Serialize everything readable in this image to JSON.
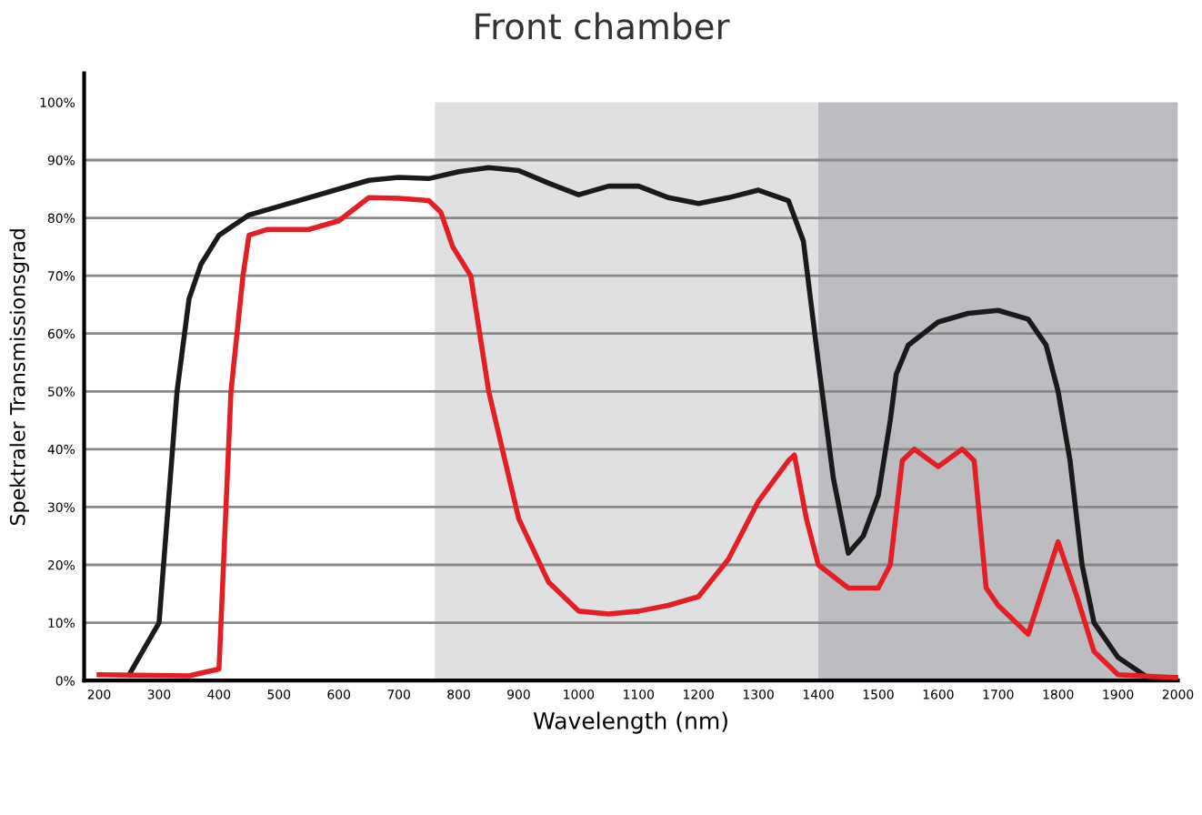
{
  "chart_data": {
    "type": "line",
    "title": "Front chamber",
    "xlabel": "Wavelength (nm)",
    "ylabel": "Spektraler Transmissionsgrad",
    "x": [
      250,
      300,
      330,
      350,
      370,
      400,
      450,
      500,
      600,
      650,
      700,
      750,
      800,
      850,
      900,
      950,
      1000,
      1050,
      1100,
      1150,
      1200,
      1250,
      1300,
      1350,
      1375,
      1400,
      1425,
      1450,
      1475,
      1500,
      1520,
      1530,
      1550,
      1600,
      1650,
      1700,
      1750,
      1780,
      1800,
      1820,
      1840,
      1860,
      1900,
      1950,
      2000
    ],
    "series": [
      {
        "color": "#1a1a1a",
        "values": [
          1,
          10,
          50,
          66,
          72,
          77,
          80.5,
          82,
          85,
          86.5,
          87,
          86.8,
          88,
          88.7,
          88.2,
          86,
          84,
          85.5,
          85.5,
          83.5,
          82.5,
          83.5,
          84.8,
          83,
          76,
          55,
          35,
          22,
          25,
          32,
          45,
          53,
          58,
          62,
          63.5,
          64,
          62.5,
          58,
          50,
          38,
          20,
          10,
          4,
          0.5,
          0.5
        ]
      },
      {
        "color": "#e31e24",
        "x": [
          200,
          350,
          400,
          420,
          440,
          450,
          480,
          550,
          600,
          650,
          700,
          750,
          770,
          790,
          820,
          850,
          900,
          950,
          1000,
          1050,
          1100,
          1150,
          1200,
          1250,
          1300,
          1350,
          1360,
          1380,
          1400,
          1450,
          1500,
          1520,
          1540,
          1560,
          1600,
          1640,
          1660,
          1680,
          1700,
          1750,
          1800,
          1830,
          1860,
          1900,
          2000
        ],
        "values": [
          1,
          0.8,
          2,
          50,
          70,
          77,
          78,
          78,
          79.5,
          83.5,
          83.4,
          83,
          81,
          75,
          70,
          50,
          28,
          17,
          12,
          11.5,
          12,
          13,
          14.5,
          21,
          31,
          38,
          39,
          28,
          20,
          16,
          16,
          20,
          38,
          40,
          37,
          40,
          38,
          16,
          13,
          8,
          24,
          15,
          5,
          1,
          0.5
        ]
      }
    ],
    "xlim": [
      175,
      2000
    ],
    "xticks": [
      200,
      300,
      400,
      500,
      600,
      700,
      800,
      900,
      1000,
      1100,
      1200,
      1300,
      1400,
      1500,
      1600,
      1700,
      1800,
      1900,
      2000
    ],
    "ylim": [
      0,
      105
    ],
    "yticks": [
      {
        "value": 0,
        "label": "0%"
      },
      {
        "value": 10,
        "label": "10%"
      },
      {
        "value": 20,
        "label": "20%"
      },
      {
        "value": 30,
        "label": "30%"
      },
      {
        "value": 40,
        "label": "40%"
      },
      {
        "value": 50,
        "label": "50%"
      },
      {
        "value": 60,
        "label": "60%"
      },
      {
        "value": 70,
        "label": "70%"
      },
      {
        "value": 80,
        "label": "80%"
      },
      {
        "value": 90,
        "label": "90%"
      },
      {
        "value": 100,
        "label": "100%"
      }
    ],
    "grid": "y",
    "line_style": "solid",
    "marker": "none",
    "bands": [
      {
        "axis": "x",
        "from": 760,
        "to": 1400,
        "color": "#dfe0e2"
      },
      {
        "axis": "x",
        "from": 1400,
        "to": 2000,
        "color": "#bcbdc0"
      }
    ]
  }
}
